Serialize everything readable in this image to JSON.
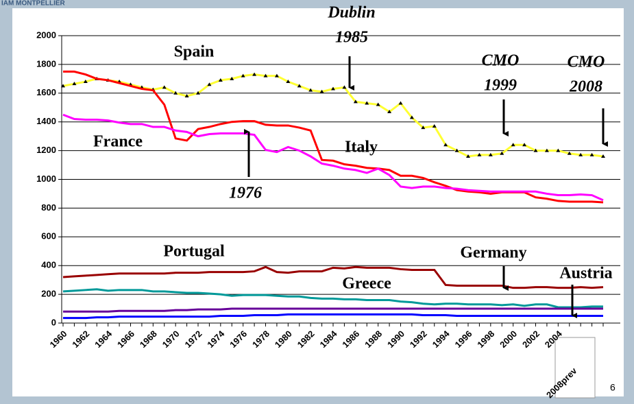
{
  "header": "IAM MONTPELLIER",
  "page_number": "6",
  "chart_data": {
    "type": "line",
    "categories": [
      "1960",
      null,
      "1962",
      null,
      "1964",
      null,
      "1966",
      null,
      "1968",
      null,
      "1970",
      null,
      "1972",
      null,
      "1974",
      null,
      "1976",
      null,
      "1978",
      null,
      "1980",
      null,
      "1982",
      null,
      "1984",
      null,
      "1986",
      null,
      "1988",
      null,
      "1990",
      null,
      "1992",
      null,
      "1994",
      null,
      "1996",
      null,
      "1998",
      null,
      "2000",
      null,
      "2002",
      null,
      "2004",
      null,
      null,
      null,
      "2008prev"
    ],
    "ylim": [
      0,
      2000
    ],
    "yticks": [
      0,
      200,
      400,
      600,
      800,
      1000,
      1200,
      1400,
      1600,
      1800,
      2000
    ],
    "grid": true,
    "series": [
      {
        "name": "Spain",
        "color": "#ffff33",
        "marker": "triangle",
        "values": [
          1650,
          1665,
          1680,
          1700,
          1690,
          1680,
          1660,
          1640,
          1625,
          1640,
          1600,
          1580,
          1600,
          1660,
          1690,
          1700,
          1720,
          1730,
          1720,
          1720,
          1680,
          1650,
          1620,
          1610,
          1630,
          1640,
          1540,
          1530,
          1520,
          1470,
          1530,
          1430,
          1360,
          1370,
          1240,
          1200,
          1160,
          1170,
          1170,
          1180,
          1240,
          1240,
          1200,
          1200,
          1200,
          1180,
          1170,
          1170,
          1160
        ]
      },
      {
        "name": "France",
        "color": "#ff0000",
        "values": [
          1750,
          1750,
          1730,
          1700,
          1690,
          1670,
          1650,
          1630,
          1620,
          1520,
          1285,
          1270,
          1350,
          1365,
          1385,
          1400,
          1405,
          1405,
          1380,
          1375,
          1375,
          1360,
          1340,
          1135,
          1130,
          1105,
          1095,
          1080,
          1075,
          1065,
          1025,
          1025,
          1010,
          980,
          955,
          925,
          915,
          910,
          900,
          910,
          910,
          910,
          875,
          865,
          850,
          845,
          845,
          845,
          840
        ]
      },
      {
        "name": "Italy",
        "color": "#ff00ff",
        "values": [
          1450,
          1420,
          1415,
          1415,
          1410,
          1395,
          1385,
          1385,
          1365,
          1365,
          1340,
          1330,
          1300,
          1315,
          1320,
          1320,
          1320,
          1310,
          1205,
          1190,
          1225,
          1200,
          1160,
          1110,
          1095,
          1075,
          1065,
          1045,
          1075,
          1030,
          950,
          940,
          950,
          950,
          940,
          935,
          925,
          920,
          915,
          915,
          915,
          915,
          915,
          900,
          890,
          890,
          895,
          890,
          855
        ]
      },
      {
        "name": "Portugal",
        "color": "#990000",
        "values": [
          320,
          325,
          330,
          335,
          340,
          345,
          345,
          345,
          345,
          345,
          350,
          350,
          350,
          355,
          355,
          355,
          355,
          360,
          390,
          355,
          350,
          360,
          360,
          360,
          385,
          380,
          390,
          385,
          385,
          385,
          375,
          370,
          370,
          370,
          265,
          260,
          260,
          260,
          260,
          260,
          245,
          245,
          250,
          250,
          245,
          245,
          250,
          245,
          250
        ]
      },
      {
        "name": "Greece",
        "color": "#009999",
        "values": [
          220,
          225,
          230,
          235,
          225,
          230,
          230,
          230,
          220,
          220,
          215,
          210,
          210,
          205,
          200,
          190,
          195,
          195,
          195,
          190,
          185,
          185,
          175,
          170,
          170,
          165,
          165,
          160,
          160,
          160,
          150,
          145,
          135,
          130,
          135,
          135,
          130,
          130,
          130,
          125,
          130,
          120,
          130,
          130,
          110,
          110,
          110,
          115,
          115
        ]
      },
      {
        "name": "Germany",
        "color": "#660099",
        "values": [
          80,
          80,
          80,
          80,
          80,
          85,
          85,
          85,
          85,
          85,
          90,
          90,
          95,
          95,
          95,
          100,
          100,
          100,
          100,
          100,
          100,
          100,
          100,
          100,
          100,
          100,
          100,
          100,
          100,
          100,
          100,
          100,
          100,
          100,
          100,
          100,
          100,
          100,
          100,
          100,
          100,
          100,
          100,
          100,
          100,
          100,
          100,
          100,
          100
        ]
      },
      {
        "name": "Austria",
        "color": "#0000ff",
        "values": [
          35,
          35,
          35,
          40,
          40,
          45,
          45,
          45,
          45,
          45,
          45,
          45,
          45,
          45,
          50,
          50,
          50,
          55,
          55,
          55,
          60,
          60,
          60,
          60,
          60,
          60,
          60,
          60,
          60,
          60,
          60,
          60,
          55,
          55,
          55,
          50,
          50,
          50,
          50,
          50,
          50,
          50,
          50,
          50,
          50,
          50,
          50,
          50,
          50
        ]
      }
    ],
    "annotations": [
      {
        "lines": [
          "Dublin",
          "1985"
        ]
      },
      {
        "lines": [
          "1976"
        ]
      },
      {
        "lines": [
          "CMO",
          "1999"
        ]
      },
      {
        "lines": [
          "CMO",
          "2008"
        ]
      }
    ]
  }
}
